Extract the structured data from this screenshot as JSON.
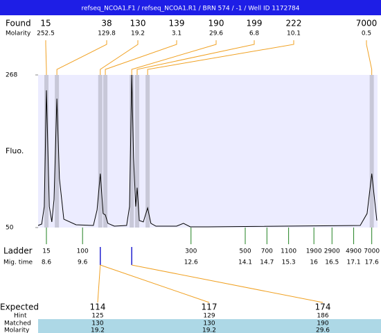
{
  "chart_data": {
    "type": "line",
    "title": "refseq_NCOA1.F1 / refseq_NCOA1.R1 / BRN 574 / -1 / Well ID 1172784",
    "found": {
      "label": "Found",
      "sizes": [
        15,
        38,
        130,
        139,
        190,
        199,
        222,
        7000
      ],
      "molarity_label": "Molarity",
      "molarity": [
        252.5,
        129.8,
        19.2,
        3.1,
        29.6,
        6.8,
        10.1,
        0.5
      ],
      "mig_times": [
        8.6,
        8.89,
        10.09,
        10.23,
        10.96,
        11.11,
        11.4,
        17.6
      ]
    },
    "y_label": "Fluo.",
    "ylim": [
      50,
      268
    ],
    "yticks": [
      50,
      268
    ],
    "xlim": [
      8.37,
      17.76
    ],
    "color": "#000000",
    "x": [
      8.37,
      8.47,
      8.54,
      8.6,
      8.68,
      8.75,
      8.81,
      8.89,
      8.96,
      9.08,
      9.42,
      9.9,
      10.0,
      10.09,
      10.17,
      10.23,
      10.3,
      10.48,
      10.82,
      10.9,
      10.96,
      11.01,
      11.07,
      11.11,
      11.17,
      11.28,
      11.4,
      11.49,
      11.63,
      12.2,
      12.39,
      12.58,
      13.06,
      17.28,
      17.47,
      17.6,
      17.74
    ],
    "values": [
      53,
      55,
      80,
      246,
      80,
      58,
      90,
      234,
      120,
      62,
      54,
      53,
      75,
      127,
      70,
      68,
      56,
      52,
      53,
      80,
      268,
      150,
      80,
      107,
      60,
      58,
      78,
      56,
      52,
      52,
      56,
      51,
      51,
      53,
      70,
      127,
      60
    ],
    "ladder": {
      "label": "Ladder",
      "time_label": "Mig. time",
      "sizes": [
        15,
        100,
        300,
        500,
        700,
        1100,
        1900,
        2900,
        4900,
        7000
      ],
      "mig_times": [
        8.6,
        9.6,
        12.6,
        14.1,
        14.7,
        15.3,
        16,
        16.5,
        17.1,
        17.6
      ]
    },
    "expected": {
      "label": "Expected",
      "values": [
        114,
        117,
        174
      ],
      "hint_label": "Hint",
      "hint": [
        125,
        129,
        186
      ],
      "matched_label": "Matched",
      "matched": [
        130,
        130,
        190
      ],
      "molarity_label": "Molarity",
      "molarity": [
        19.2,
        19.2,
        29.6
      ]
    }
  }
}
